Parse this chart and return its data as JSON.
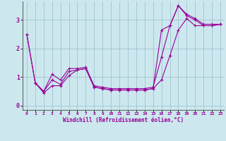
{
  "xlabel": "Windchill (Refroidissement éolien,°C)",
  "ylabel": "",
  "bg_color": "#cce8ee",
  "line_color": "#990099",
  "grid_color": "#99bbcc",
  "xlim": [
    -0.5,
    23.4
  ],
  "ylim": [
    -0.15,
    3.65
  ],
  "xticks": [
    0,
    1,
    2,
    3,
    4,
    5,
    6,
    7,
    8,
    9,
    10,
    11,
    12,
    13,
    14,
    15,
    16,
    17,
    18,
    19,
    20,
    21,
    22,
    23
  ],
  "yticks": [
    0,
    1,
    2,
    3
  ],
  "line1_x": [
    0,
    1,
    2,
    3,
    4,
    5,
    6,
    7,
    8,
    9,
    10,
    11,
    12,
    13,
    14,
    15,
    16,
    17,
    18,
    19,
    20,
    21,
    22,
    23
  ],
  "line1_y": [
    2.5,
    0.8,
    0.5,
    0.9,
    0.75,
    1.2,
    1.25,
    1.3,
    0.65,
    0.6,
    0.55,
    0.55,
    0.55,
    0.55,
    0.55,
    0.6,
    0.9,
    1.75,
    2.65,
    3.05,
    2.8,
    2.8,
    2.8,
    2.85
  ],
  "line2_x": [
    0,
    1,
    2,
    3,
    4,
    5,
    6,
    7,
    8,
    9,
    10,
    11,
    12,
    13,
    14,
    15,
    16,
    17,
    18,
    19,
    20,
    21,
    22,
    23
  ],
  "line2_y": [
    2.5,
    0.8,
    0.5,
    1.1,
    0.9,
    1.3,
    1.3,
    1.35,
    0.7,
    0.65,
    0.6,
    0.6,
    0.6,
    0.6,
    0.6,
    0.65,
    1.7,
    2.8,
    3.5,
    3.2,
    3.05,
    2.85,
    2.85,
    2.85
  ],
  "line3_x": [
    1,
    2,
    3,
    4,
    5,
    6,
    7,
    8,
    9,
    10,
    11,
    12,
    13,
    14,
    15,
    16,
    17,
    18,
    19,
    20,
    21,
    22,
    23
  ],
  "line3_y": [
    0.8,
    0.45,
    0.7,
    0.7,
    1.05,
    1.25,
    1.3,
    0.65,
    0.6,
    0.55,
    0.55,
    0.55,
    0.55,
    0.55,
    0.6,
    2.65,
    2.8,
    3.5,
    3.15,
    3.0,
    2.8,
    2.8,
    2.85
  ]
}
